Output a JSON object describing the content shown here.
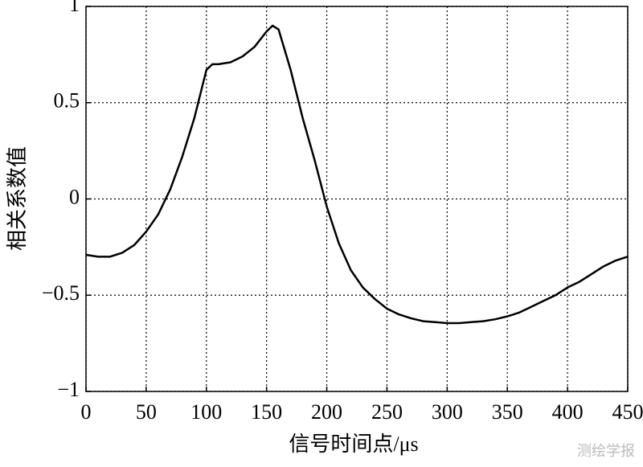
{
  "chart_data": {
    "type": "line",
    "xlabel": "信号时间点/μs",
    "ylabel": "相关系数值",
    "watermark": "测绘学报",
    "x": [
      0,
      10,
      20,
      30,
      40,
      50,
      60,
      70,
      80,
      90,
      100,
      105,
      110,
      120,
      130,
      140,
      150,
      155,
      160,
      170,
      180,
      190,
      200,
      210,
      220,
      230,
      240,
      250,
      260,
      270,
      280,
      290,
      300,
      310,
      320,
      330,
      340,
      350,
      360,
      370,
      380,
      390,
      400,
      410,
      420,
      430,
      440,
      450
    ],
    "series": [
      {
        "color": "#000000",
        "values": [
          -0.29,
          -0.3,
          -0.3,
          -0.28,
          -0.24,
          -0.17,
          -0.08,
          0.05,
          0.22,
          0.42,
          0.67,
          0.7,
          0.7,
          0.71,
          0.74,
          0.79,
          0.87,
          0.9,
          0.88,
          0.67,
          0.42,
          0.2,
          -0.04,
          -0.23,
          -0.37,
          -0.46,
          -0.52,
          -0.57,
          -0.6,
          -0.62,
          -0.635,
          -0.64,
          -0.645,
          -0.645,
          -0.64,
          -0.635,
          -0.625,
          -0.61,
          -0.59,
          -0.56,
          -0.53,
          -0.5,
          -0.46,
          -0.43,
          -0.39,
          -0.35,
          -0.32,
          -0.3
        ]
      }
    ],
    "xlim": [
      0,
      450
    ],
    "xticks": [
      0,
      50,
      100,
      150,
      200,
      250,
      300,
      350,
      400,
      450
    ],
    "ylim": [
      -1,
      1
    ],
    "yticks": [
      {
        "value": -1,
        "label": "−1"
      },
      {
        "value": -0.5,
        "label": "−0.5"
      },
      0,
      0.5,
      1
    ],
    "grid": true
  }
}
